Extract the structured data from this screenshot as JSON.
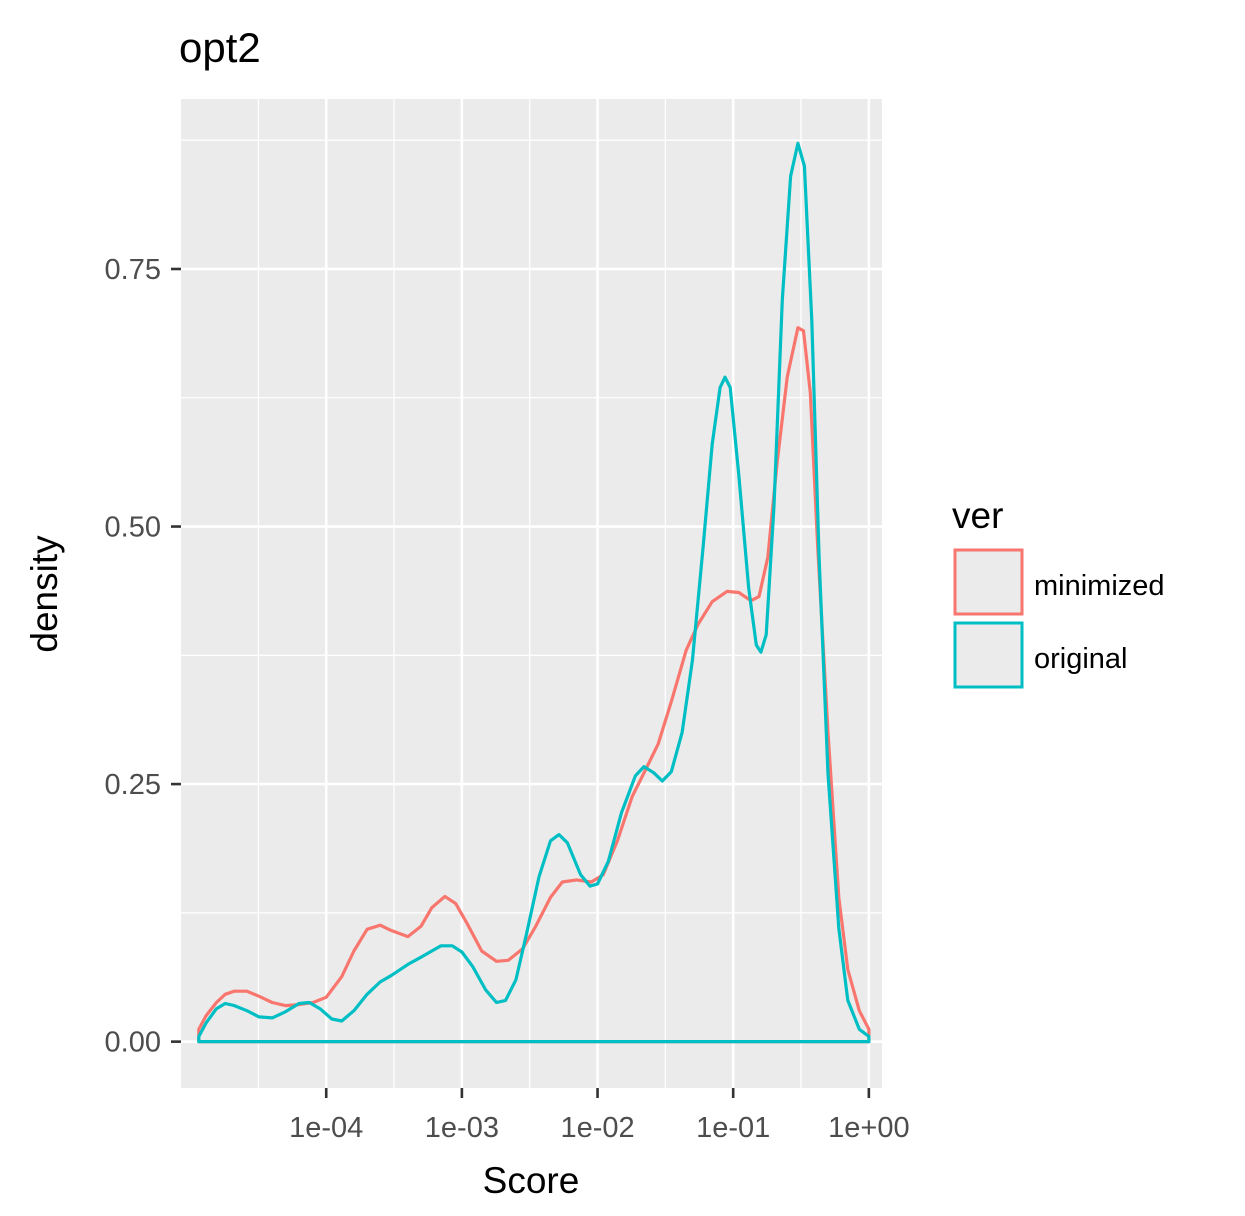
{
  "chart_data": {
    "type": "line",
    "title": "opt2",
    "xlabel": "Score",
    "ylabel": "density",
    "x_scale": "log10",
    "xlim": [
      8.5e-06,
      1.25
    ],
    "ylim": [
      -0.045,
      0.915
    ],
    "x_ticks": [
      {
        "value": 0.0001,
        "label": "1e-04"
      },
      {
        "value": 0.001,
        "label": "1e-03"
      },
      {
        "value": 0.01,
        "label": "1e-02"
      },
      {
        "value": 0.1,
        "label": "1e-01"
      },
      {
        "value": 1,
        "label": "1e+00"
      }
    ],
    "y_ticks": [
      {
        "value": 0.0,
        "label": "0.00"
      },
      {
        "value": 0.25,
        "label": "0.25"
      },
      {
        "value": 0.5,
        "label": "0.50"
      },
      {
        "value": 0.75,
        "label": "0.75"
      }
    ],
    "grid": true,
    "legend": {
      "title": "ver",
      "position": "right"
    },
    "series": [
      {
        "name": "minimized",
        "color": "#F8766D",
        "points": [
          [
            1.15e-05,
            0.012
          ],
          [
            1.3e-05,
            0.025
          ],
          [
            1.55e-05,
            0.038
          ],
          [
            1.8e-05,
            0.046
          ],
          [
            2.1e-05,
            0.049
          ],
          [
            2.6e-05,
            0.049
          ],
          [
            3.2e-05,
            0.044
          ],
          [
            4e-05,
            0.038
          ],
          [
            5e-05,
            0.035
          ],
          [
            6.3e-05,
            0.036
          ],
          [
            8e-05,
            0.038
          ],
          [
            0.0001,
            0.043
          ],
          [
            0.00013,
            0.063
          ],
          [
            0.00016,
            0.088
          ],
          [
            0.0002,
            0.109
          ],
          [
            0.00025,
            0.113
          ],
          [
            0.0003,
            0.108
          ],
          [
            0.0004,
            0.102
          ],
          [
            0.0005,
            0.112
          ],
          [
            0.0006,
            0.13
          ],
          [
            0.00075,
            0.141
          ],
          [
            0.0009,
            0.134
          ],
          [
            0.0011,
            0.114
          ],
          [
            0.0014,
            0.088
          ],
          [
            0.0018,
            0.078
          ],
          [
            0.0022,
            0.079
          ],
          [
            0.0028,
            0.09
          ],
          [
            0.0035,
            0.112
          ],
          [
            0.0045,
            0.14
          ],
          [
            0.0055,
            0.155
          ],
          [
            0.007,
            0.157
          ],
          [
            0.009,
            0.155
          ],
          [
            0.011,
            0.162
          ],
          [
            0.014,
            0.195
          ],
          [
            0.018,
            0.238
          ],
          [
            0.023,
            0.266
          ],
          [
            0.028,
            0.289
          ],
          [
            0.035,
            0.33
          ],
          [
            0.045,
            0.38
          ],
          [
            0.055,
            0.405
          ],
          [
            0.07,
            0.427
          ],
          [
            0.09,
            0.437
          ],
          [
            0.11,
            0.436
          ],
          [
            0.135,
            0.428
          ],
          [
            0.155,
            0.432
          ],
          [
            0.18,
            0.47
          ],
          [
            0.21,
            0.56
          ],
          [
            0.25,
            0.645
          ],
          [
            0.3,
            0.693
          ],
          [
            0.33,
            0.69
          ],
          [
            0.37,
            0.63
          ],
          [
            0.42,
            0.48
          ],
          [
            0.5,
            0.3
          ],
          [
            0.6,
            0.14
          ],
          [
            0.7,
            0.07
          ],
          [
            0.85,
            0.03
          ],
          [
            1.0,
            0.012
          ]
        ]
      },
      {
        "name": "original",
        "color": "#00BFC4",
        "points": [
          [
            1.15e-05,
            0.005
          ],
          [
            1.3e-05,
            0.018
          ],
          [
            1.55e-05,
            0.032
          ],
          [
            1.8e-05,
            0.037
          ],
          [
            2.1e-05,
            0.035
          ],
          [
            2.6e-05,
            0.03
          ],
          [
            3.2e-05,
            0.024
          ],
          [
            4e-05,
            0.023
          ],
          [
            5e-05,
            0.029
          ],
          [
            6.3e-05,
            0.037
          ],
          [
            7.5e-05,
            0.038
          ],
          [
            9e-05,
            0.032
          ],
          [
            0.00011,
            0.022
          ],
          [
            0.00013,
            0.02
          ],
          [
            0.00016,
            0.03
          ],
          [
            0.0002,
            0.046
          ],
          [
            0.00025,
            0.058
          ],
          [
            0.0003,
            0.064
          ],
          [
            0.0004,
            0.075
          ],
          [
            0.0005,
            0.082
          ],
          [
            0.0006,
            0.088
          ],
          [
            0.0007,
            0.093
          ],
          [
            0.00085,
            0.093
          ],
          [
            0.001,
            0.087
          ],
          [
            0.0012,
            0.073
          ],
          [
            0.0015,
            0.05
          ],
          [
            0.0018,
            0.038
          ],
          [
            0.0021,
            0.04
          ],
          [
            0.0025,
            0.06
          ],
          [
            0.003,
            0.105
          ],
          [
            0.0037,
            0.16
          ],
          [
            0.0045,
            0.195
          ],
          [
            0.0052,
            0.201
          ],
          [
            0.006,
            0.193
          ],
          [
            0.0075,
            0.162
          ],
          [
            0.0088,
            0.151
          ],
          [
            0.01,
            0.153
          ],
          [
            0.012,
            0.175
          ],
          [
            0.015,
            0.222
          ],
          [
            0.019,
            0.258
          ],
          [
            0.022,
            0.267
          ],
          [
            0.026,
            0.261
          ],
          [
            0.03,
            0.253
          ],
          [
            0.035,
            0.262
          ],
          [
            0.042,
            0.3
          ],
          [
            0.05,
            0.37
          ],
          [
            0.06,
            0.48
          ],
          [
            0.07,
            0.58
          ],
          [
            0.08,
            0.635
          ],
          [
            0.087,
            0.645
          ],
          [
            0.095,
            0.635
          ],
          [
            0.11,
            0.55
          ],
          [
            0.13,
            0.44
          ],
          [
            0.148,
            0.385
          ],
          [
            0.16,
            0.378
          ],
          [
            0.175,
            0.395
          ],
          [
            0.2,
            0.52
          ],
          [
            0.23,
            0.72
          ],
          [
            0.265,
            0.84
          ],
          [
            0.3,
            0.872
          ],
          [
            0.335,
            0.85
          ],
          [
            0.38,
            0.7
          ],
          [
            0.43,
            0.47
          ],
          [
            0.5,
            0.26
          ],
          [
            0.6,
            0.11
          ],
          [
            0.7,
            0.04
          ],
          [
            0.85,
            0.012
          ],
          [
            1.0,
            0.005
          ]
        ]
      }
    ]
  }
}
